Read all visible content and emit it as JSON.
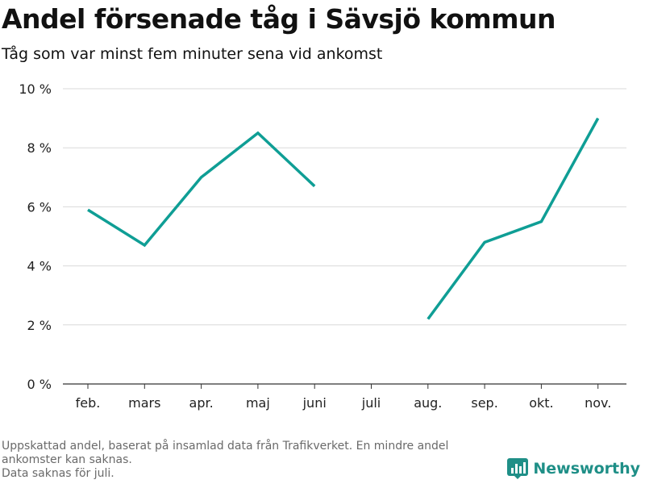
{
  "title": "Andel försenade tåg i Sävsjö kommun",
  "subtitle": "Tåg som var minst fem minuter sena vid ankomst",
  "footnote_lines": [
    "Uppskattad andel, baserat på insamlad data från Trafikverket. En mindre andel ankomster kan saknas.",
    "Data saknas för juli."
  ],
  "brand": {
    "name": "Newsworthy",
    "icon": "newsworthy-logo-icon"
  },
  "colors": {
    "line": "#0f9e95",
    "grid": "#d9d9d9",
    "brand": "#1f8f87"
  },
  "chart_data": {
    "type": "line",
    "title": "Andel försenade tåg i Sävsjö kommun",
    "subtitle": "Tåg som var minst fem minuter sena vid ankomst",
    "xlabel": "",
    "ylabel": "",
    "categories": [
      "feb.",
      "mars",
      "apr.",
      "maj",
      "juni",
      "juli",
      "aug.",
      "sep.",
      "okt.",
      "nov."
    ],
    "series": [
      {
        "values": [
          5.9,
          4.7,
          7.0,
          8.5,
          6.7,
          null,
          2.2,
          4.8,
          5.5,
          9.0
        ]
      }
    ],
    "ylim": [
      0,
      10
    ],
    "yticks": [
      0,
      2,
      4,
      6,
      8,
      10
    ],
    "ytick_labels": [
      "0 %",
      "2 %",
      "4 %",
      "6 %",
      "8 %",
      "10 %"
    ],
    "grid": true,
    "legend": "none"
  }
}
